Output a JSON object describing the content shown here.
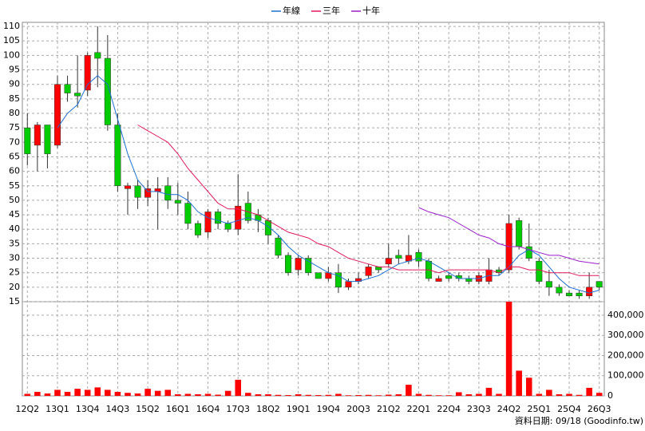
{
  "chart_data": {
    "type": "candlestick",
    "categories": [
      "12Q2",
      null,
      null,
      "13Q1",
      null,
      null,
      "13Q4",
      null,
      null,
      "14Q3",
      null,
      null,
      "15Q2",
      null,
      null,
      "16Q1",
      null,
      null,
      "16Q4",
      null,
      null,
      "17Q3",
      null,
      null,
      "18Q2",
      null,
      null,
      "19Q1",
      null,
      null,
      "19Q4",
      null,
      null,
      "20Q3",
      null,
      null,
      "21Q2",
      null,
      null,
      "22Q1",
      null,
      null,
      "22Q4",
      null,
      null,
      "23Q3",
      null,
      null,
      "24Q2",
      null,
      null,
      "25Q1",
      null,
      null,
      "25Q4",
      null,
      null,
      "26Q3"
    ],
    "open": [
      75,
      69,
      76,
      69,
      90,
      87,
      88,
      101,
      99,
      76,
      54,
      55,
      51,
      53,
      55,
      50,
      49,
      42,
      39,
      46,
      42,
      40,
      49,
      45,
      43,
      37,
      31,
      26,
      30,
      25,
      23,
      25,
      20,
      22,
      24,
      27,
      28,
      31,
      29,
      32,
      29,
      22,
      24,
      24,
      23,
      22,
      22,
      26,
      26,
      43,
      34,
      29,
      22,
      20,
      18,
      18,
      17,
      22
    ],
    "high": [
      80,
      77,
      76,
      93,
      93,
      100,
      101,
      110,
      107,
      80,
      56,
      57,
      57,
      58,
      58,
      56,
      53,
      43,
      47,
      47,
      43,
      59,
      53,
      47,
      44,
      38,
      32,
      31,
      31,
      25,
      27,
      28,
      23,
      25,
      28,
      27,
      35,
      33,
      38,
      33,
      30,
      24,
      25,
      25,
      24,
      25,
      30,
      27,
      45,
      44,
      42,
      30,
      26,
      21,
      19,
      19,
      25,
      22
    ],
    "low": [
      62,
      60,
      61,
      68,
      84,
      82,
      86,
      89,
      74,
      53,
      45,
      47,
      48,
      40,
      47,
      45,
      40,
      37,
      37,
      40,
      39,
      38,
      42,
      39,
      35,
      30,
      24,
      24,
      24,
      23,
      22,
      18,
      19,
      21,
      23,
      25,
      27,
      28,
      28,
      27,
      22,
      22,
      22,
      22,
      21,
      21,
      21,
      24,
      25,
      33,
      29,
      21,
      17,
      17,
      17,
      16,
      16,
      19
    ],
    "close": [
      66,
      76,
      66,
      90,
      87,
      86,
      100,
      99,
      76,
      55,
      55,
      51,
      54,
      54,
      50,
      49,
      42,
      38,
      46,
      42,
      40,
      48,
      43,
      43,
      38,
      31,
      25,
      30,
      25,
      23,
      25,
      20,
      22,
      23,
      27,
      26,
      30,
      30,
      31,
      29,
      23,
      23,
      23,
      23,
      22,
      24,
      26,
      25,
      42,
      34,
      30,
      22,
      20,
      18,
      17,
      17,
      20,
      20
    ],
    "up_color": "#ff0000",
    "down_color": "#00cc00",
    "volume": {
      "color": "#ff0000",
      "values": [
        10000,
        20000,
        12000,
        30000,
        20000,
        35000,
        30000,
        42000,
        30000,
        20000,
        15000,
        12000,
        35000,
        25000,
        30000,
        8000,
        10000,
        8000,
        10000,
        6000,
        25000,
        80000,
        15000,
        8000,
        8000,
        5000,
        4000,
        8000,
        5000,
        4000,
        5000,
        10000,
        3000,
        4000,
        5000,
        3000,
        6000,
        8000,
        55000,
        10000,
        5000,
        3000,
        3000,
        18000,
        8000,
        10000,
        40000,
        10000,
        467000,
        125000,
        90000,
        10000,
        30000,
        8000,
        10000,
        5000,
        40000,
        15000
      ]
    },
    "series": [
      {
        "name": "年線",
        "color": "#1f6fd1",
        "values": [
          null,
          null,
          null,
          75,
          80,
          83,
          90,
          93,
          90,
          78,
          66,
          57,
          53,
          53,
          52,
          52,
          50,
          46,
          44,
          43,
          42,
          43,
          44,
          43,
          41,
          38,
          34,
          31,
          29,
          27,
          25,
          24,
          22,
          22,
          23,
          24,
          26,
          28,
          29,
          30,
          29,
          27,
          25,
          23,
          23,
          23,
          24,
          24,
          27,
          31,
          33,
          31,
          27,
          23,
          20,
          19,
          18,
          19
        ]
      },
      {
        "name": "三年",
        "color": "#e0195a",
        "values": [
          null,
          null,
          null,
          null,
          null,
          null,
          null,
          null,
          null,
          null,
          null,
          76,
          74,
          72,
          70,
          66,
          61,
          57,
          53,
          49,
          47,
          47,
          46,
          45,
          43,
          41,
          39,
          38,
          37,
          35,
          34,
          32,
          30,
          29,
          28,
          27,
          27,
          26,
          26,
          26,
          26,
          25,
          26,
          26,
          26,
          26,
          26,
          25,
          27,
          27,
          26,
          26,
          25,
          25,
          25,
          24,
          24,
          24
        ]
      },
      {
        "name": "十年",
        "color": "#9b1fc9",
        "values": [
          null,
          null,
          null,
          null,
          null,
          null,
          null,
          null,
          null,
          null,
          null,
          null,
          null,
          null,
          null,
          null,
          null,
          null,
          null,
          null,
          null,
          null,
          null,
          null,
          null,
          null,
          null,
          null,
          null,
          null,
          null,
          null,
          null,
          null,
          null,
          null,
          null,
          null,
          null,
          47.5,
          46,
          45,
          44,
          42,
          40,
          38,
          37,
          35,
          34,
          34,
          33,
          32,
          31,
          31,
          30,
          29,
          28.5,
          28
        ]
      }
    ],
    "ylim": [
      15,
      111.4
    ],
    "yticks": [
      15,
      20,
      25,
      30,
      35,
      40,
      45,
      50,
      55,
      60,
      65,
      70,
      75,
      80,
      85,
      90,
      95,
      100,
      105,
      110
    ],
    "y2lim": [
      0,
      467000
    ],
    "y2ticks": [
      {
        "value": 0,
        "label": "0"
      },
      {
        "value": 100000,
        "label": "100,000"
      },
      {
        "value": 200000,
        "label": "200,000"
      },
      {
        "value": 300000,
        "label": "300,000"
      },
      {
        "value": 400000,
        "label": "400,000"
      }
    ],
    "grid": true,
    "legend": "top",
    "footer": "資料日期: 09/18 (Goodinfo.tw)"
  }
}
